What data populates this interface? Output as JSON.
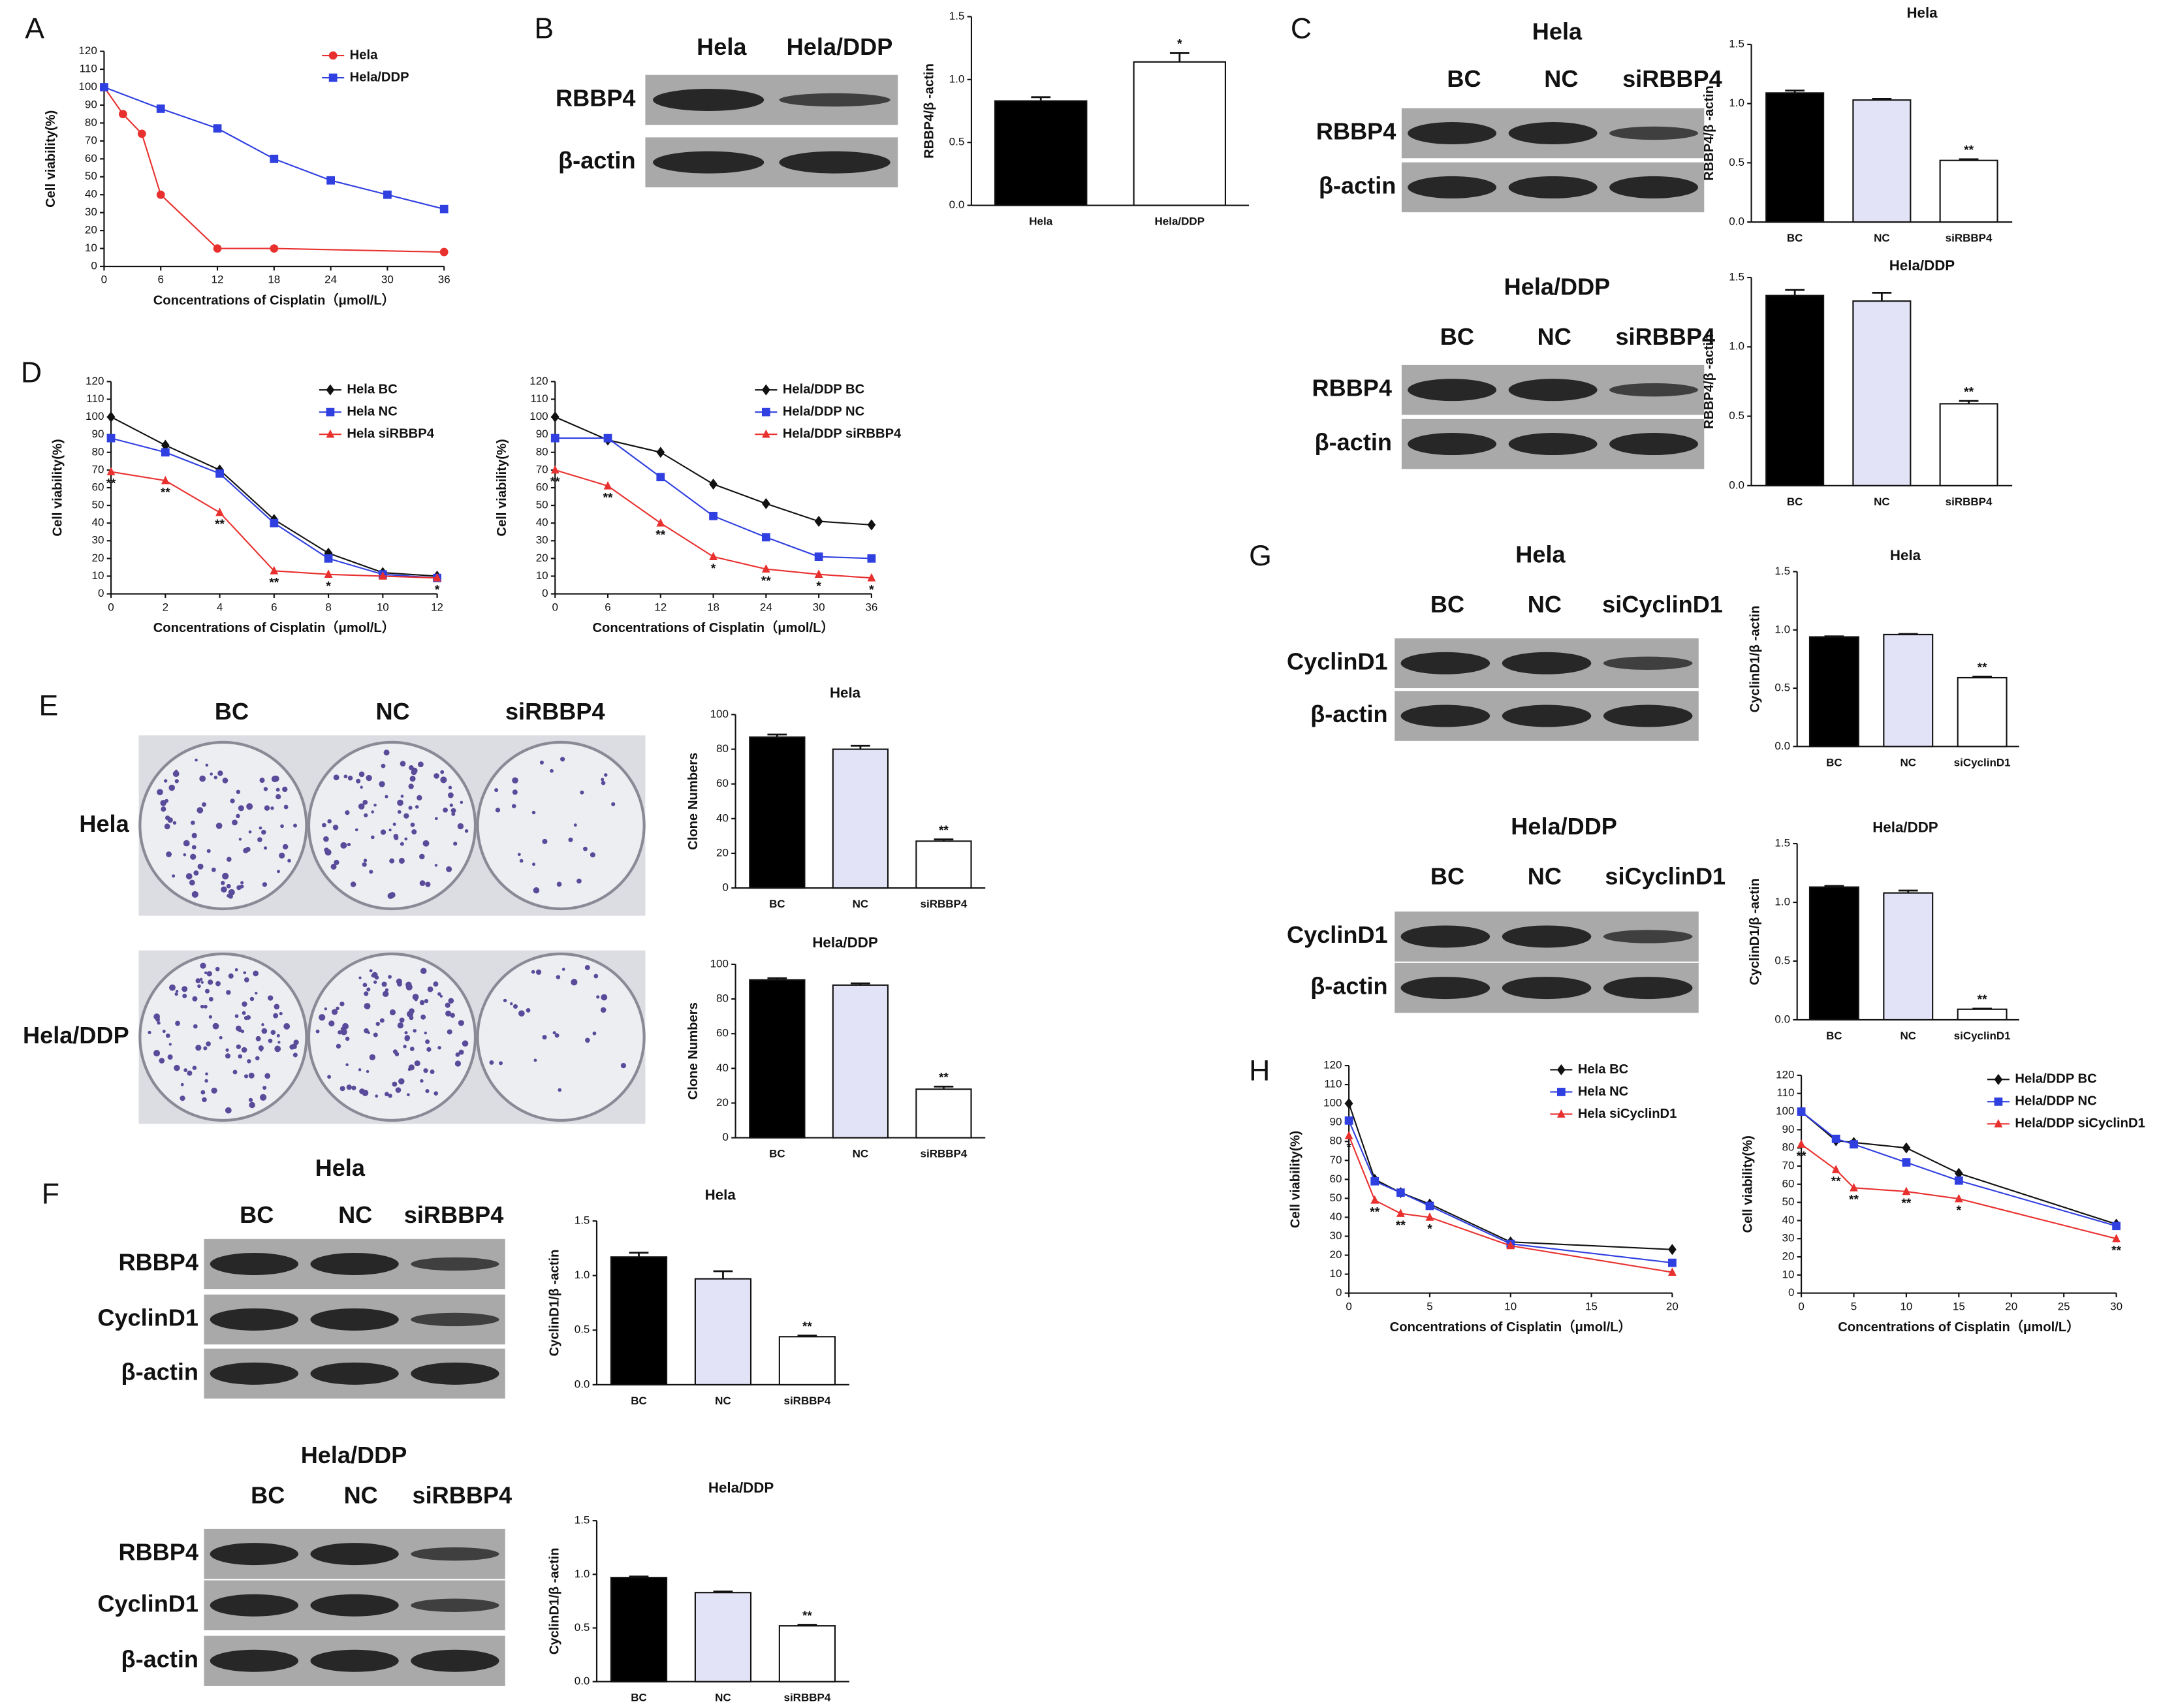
{
  "panels": [
    "A",
    "B",
    "C",
    "D",
    "E",
    "F",
    "G",
    "H"
  ],
  "blots": [
    {
      "lanes": [
        "Hela",
        "Hela/DDP"
      ],
      "rows": [
        "RBBP4",
        "β-actin"
      ]
    },
    {
      "title": "Hela",
      "lanes": [
        "BC",
        "NC",
        "siRBBP4"
      ],
      "rows": [
        "RBBP4",
        "β-actin"
      ]
    },
    {
      "title": "Hela/DDP",
      "lanes": [
        "BC",
        "NC",
        "siRBBP4"
      ],
      "rows": [
        "RBBP4",
        "β-actin"
      ]
    },
    {
      "title": "Hela",
      "lanes": [
        "BC",
        "NC",
        "siRBBP4"
      ],
      "rows": [
        "RBBP4",
        "CyclinD1",
        "β-actin"
      ]
    },
    {
      "title": "Hela/DDP",
      "lanes": [
        "BC",
        "NC",
        "siRBBP4"
      ],
      "rows": [
        "RBBP4",
        "CyclinD1",
        "β-actin"
      ]
    },
    {
      "title": "Hela",
      "lanes": [
        "BC",
        "NC",
        "siCyclinD1"
      ],
      "rows": [
        "CyclinD1",
        "β-actin"
      ]
    },
    {
      "title": "Hela/DDP",
      "lanes": [
        "BC",
        "NC",
        "siCyclinD1"
      ],
      "rows": [
        "CyclinD1",
        "β-actin"
      ]
    }
  ],
  "plates": {
    "lanes": [
      "BC",
      "NC",
      "siRBBP4"
    ],
    "rows": [
      "Hela",
      "Hela/DDP"
    ]
  },
  "chart_data": [
    {
      "type": "line",
      "xlabel": "Concentrations of Cisplatin（μmol/L）",
      "ylabel": "Cell viability(%)",
      "xlim": [
        0,
        36
      ],
      "xticks": [
        0,
        6,
        12,
        18,
        24,
        30,
        36
      ],
      "ylim": [
        0,
        120
      ],
      "yticks": [
        0,
        10,
        20,
        30,
        40,
        50,
        60,
        70,
        80,
        90,
        100,
        110,
        120
      ],
      "series": [
        {
          "name": "Hela",
          "color": "#e8312f",
          "marker": "circle",
          "x": [
            0,
            2,
            4,
            6,
            12,
            18,
            36
          ],
          "values": [
            100,
            85,
            74,
            40,
            10,
            10,
            8
          ]
        },
        {
          "name": "Hela/DDP",
          "color": "#2f3fe0",
          "marker": "square",
          "x": [
            0,
            6,
            12,
            18,
            24,
            30,
            36
          ],
          "values": [
            100,
            88,
            77,
            60,
            48,
            40,
            32
          ]
        }
      ]
    },
    {
      "type": "bar",
      "ylabel": "RBBP4/β -actin",
      "categories": [
        "Hela",
        "Hela/DDP"
      ],
      "values": [
        0.83,
        1.14
      ],
      "errors": [
        0.03,
        0.07
      ],
      "colors": [
        "#000000",
        "#ffffff"
      ],
      "significance": [
        null,
        "*"
      ],
      "ylim": [
        0,
        1.5
      ],
      "yticks": [
        {
          "value": 0,
          "label": "0.0"
        },
        0.5,
        {
          "value": 1,
          "label": "1.0"
        },
        1.5
      ]
    },
    {
      "type": "bar",
      "title": "Hela",
      "ylabel": "RBBP4/β -actin",
      "categories": [
        "BC",
        "NC",
        "siRBBP4"
      ],
      "values": [
        1.09,
        1.03,
        0.52
      ],
      "errors": [
        0.02,
        0.01,
        0.01
      ],
      "colors": [
        "#000000",
        "#e3e3f8",
        "#ffffff"
      ],
      "significance": [
        null,
        null,
        "**"
      ],
      "ylim": [
        0,
        1.5
      ],
      "yticks": [
        {
          "value": 0,
          "label": "0.0"
        },
        0.5,
        {
          "value": 1,
          "label": "1.0"
        },
        1.5
      ]
    },
    {
      "type": "bar",
      "title": "Hela/DDP",
      "ylabel": "RBBP4/β -actin",
      "categories": [
        "BC",
        "NC",
        "siRBBP4"
      ],
      "values": [
        1.37,
        1.33,
        0.59
      ],
      "errors": [
        0.04,
        0.06,
        0.02
      ],
      "colors": [
        "#000000",
        "#e3e3f8",
        "#ffffff"
      ],
      "significance": [
        null,
        null,
        "**"
      ],
      "ylim": [
        0,
        1.5
      ],
      "yticks": [
        {
          "value": 0,
          "label": "0.0"
        },
        0.5,
        {
          "value": 1,
          "label": "1.0"
        },
        1.5
      ]
    },
    {
      "type": "line",
      "xlabel": "Concentrations of Cisplatin（μmol/L）",
      "ylabel": "Cell viability(%)",
      "xlim": [
        0,
        12
      ],
      "xticks": [
        0,
        2,
        4,
        6,
        8,
        10,
        12
      ],
      "ylim": [
        0,
        120
      ],
      "yticks": [
        0,
        10,
        20,
        30,
        40,
        50,
        60,
        70,
        80,
        90,
        100,
        110,
        120
      ],
      "series": [
        {
          "name": "Hela BC",
          "color": "#111111",
          "marker": "diamond",
          "x": [
            0,
            2,
            4,
            6,
            8,
            10,
            12
          ],
          "values": [
            100,
            84,
            70,
            42,
            23,
            12,
            10
          ]
        },
        {
          "name": "Hela NC",
          "color": "#2f3fe0",
          "marker": "square",
          "x": [
            0,
            2,
            4,
            6,
            8,
            10,
            12
          ],
          "values": [
            88,
            80,
            68,
            40,
            20,
            11,
            9
          ]
        },
        {
          "name": "Hela siRBBP4",
          "color": "#e8312f",
          "marker": "triangle",
          "x": [
            0,
            2,
            4,
            6,
            8,
            10,
            12
          ],
          "values": [
            69,
            64,
            46,
            13,
            11,
            10,
            9
          ],
          "point_labels": [
            "**",
            "**",
            "**",
            "**",
            "*",
            null,
            "*"
          ]
        }
      ]
    },
    {
      "type": "line",
      "xlabel": "Concentrations of Cisplatin（μmol/L）",
      "ylabel": "Cell viability(%)",
      "xlim": [
        0,
        36
      ],
      "xticks": [
        0,
        6,
        12,
        18,
        24,
        30,
        36
      ],
      "ylim": [
        0,
        120
      ],
      "yticks": [
        0,
        10,
        20,
        30,
        40,
        50,
        60,
        70,
        80,
        90,
        100,
        110,
        120
      ],
      "series": [
        {
          "name": "Hela/DDP BC",
          "color": "#111111",
          "marker": "diamond",
          "x": [
            0,
            6,
            12,
            18,
            24,
            30,
            36
          ],
          "values": [
            100,
            87,
            80,
            62,
            51,
            41,
            39
          ]
        },
        {
          "name": "Hela/DDP NC",
          "color": "#2f3fe0",
          "marker": "square",
          "x": [
            0,
            6,
            12,
            18,
            24,
            30,
            36
          ],
          "values": [
            88,
            88,
            66,
            44,
            32,
            21,
            20
          ]
        },
        {
          "name": "Hela/DDP siRBBP4",
          "color": "#e8312f",
          "marker": "triangle",
          "x": [
            0,
            6,
            12,
            18,
            24,
            30,
            36
          ],
          "values": [
            70,
            61,
            40,
            21,
            14,
            11,
            9
          ],
          "point_labels": [
            "**",
            "**",
            "**",
            "*",
            "**",
            "*",
            "*"
          ]
        }
      ]
    },
    {
      "type": "bar",
      "title": "Hela",
      "ylabel": "Clone Numbers",
      "categories": [
        "BC",
        "NC",
        "siRBBP4"
      ],
      "values": [
        87,
        80,
        27
      ],
      "errors": [
        1.5,
        2,
        1
      ],
      "colors": [
        "#000000",
        "#e3e3f8",
        "#ffffff"
      ],
      "significance": [
        null,
        null,
        "**"
      ],
      "ylim": [
        0,
        100
      ],
      "yticks": [
        0,
        20,
        40,
        60,
        80,
        100
      ]
    },
    {
      "type": "bar",
      "title": "Hela/DDP",
      "ylabel": "Clone Numbers",
      "categories": [
        "BC",
        "NC",
        "siRBBP4"
      ],
      "values": [
        91,
        88,
        28
      ],
      "errors": [
        1,
        1,
        1.5
      ],
      "colors": [
        "#000000",
        "#e3e3f8",
        "#ffffff"
      ],
      "significance": [
        null,
        null,
        "**"
      ],
      "ylim": [
        0,
        100
      ],
      "yticks": [
        0,
        20,
        40,
        60,
        80,
        100
      ]
    },
    {
      "type": "bar",
      "title": "Hela",
      "ylabel": "CyclinD1/β -actin",
      "categories": [
        "BC",
        "NC",
        "siRBBP4"
      ],
      "values": [
        1.17,
        0.97,
        0.44
      ],
      "errors": [
        0.04,
        0.07,
        0.01
      ],
      "colors": [
        "#000000",
        "#e3e3f8",
        "#ffffff"
      ],
      "significance": [
        null,
        null,
        "**"
      ],
      "ylim": [
        0,
        1.5
      ],
      "yticks": [
        {
          "value": 0,
          "label": "0.0"
        },
        0.5,
        {
          "value": 1,
          "label": "1.0"
        },
        1.5
      ]
    },
    {
      "type": "bar",
      "title": "Hela/DDP",
      "ylabel": "CyclinD1/β -actin",
      "categories": [
        "BC",
        "NC",
        "siRBBP4"
      ],
      "values": [
        0.97,
        0.83,
        0.52
      ],
      "errors": [
        0.01,
        0.01,
        0.01
      ],
      "colors": [
        "#000000",
        "#e3e3f8",
        "#ffffff"
      ],
      "significance": [
        null,
        null,
        "**"
      ],
      "ylim": [
        0,
        1.5
      ],
      "yticks": [
        {
          "value": 0,
          "label": "0.0"
        },
        0.5,
        {
          "value": 1,
          "label": "1.0"
        },
        1.5
      ]
    },
    {
      "type": "bar",
      "title": "Hela",
      "ylabel": "CyclinD1/β -actin",
      "categories": [
        "BC",
        "NC",
        "siCyclinD1"
      ],
      "values": [
        0.94,
        0.96,
        0.59
      ],
      "errors": [
        0.005,
        0.005,
        0.01
      ],
      "colors": [
        "#000000",
        "#e3e3f8",
        "#ffffff"
      ],
      "significance": [
        null,
        null,
        "**"
      ],
      "ylim": [
        0,
        1.5
      ],
      "yticks": [
        {
          "value": 0,
          "label": "0.0"
        },
        0.5,
        {
          "value": 1,
          "label": "1.0"
        },
        1.5
      ]
    },
    {
      "type": "bar",
      "title": "Hela/DDP",
      "ylabel": "CyclinD1/β -actin",
      "categories": [
        "BC",
        "NC",
        "siCyclinD1"
      ],
      "values": [
        1.13,
        1.08,
        0.09
      ],
      "errors": [
        0.01,
        0.02,
        0.005
      ],
      "colors": [
        "#000000",
        "#e3e3f8",
        "#ffffff"
      ],
      "significance": [
        null,
        null,
        "**"
      ],
      "ylim": [
        0,
        1.5
      ],
      "yticks": [
        {
          "value": 0,
          "label": "0.0"
        },
        0.5,
        {
          "value": 1,
          "label": "1.0"
        },
        1.5
      ]
    },
    {
      "type": "line",
      "xlabel": "Concentrations of Cisplatin（μmol/L）",
      "ylabel": "Cell viability(%)",
      "xlim": [
        0,
        20
      ],
      "xticks": [
        0,
        5,
        10,
        15,
        20
      ],
      "ylim": [
        0,
        120
      ],
      "yticks": [
        0,
        10,
        20,
        30,
        40,
        50,
        60,
        70,
        80,
        90,
        100,
        110,
        120
      ],
      "series": [
        {
          "name": "Hela BC",
          "color": "#111111",
          "marker": "diamond",
          "x": [
            0,
            1.6,
            3.2,
            5,
            10,
            20
          ],
          "values": [
            100,
            60,
            53,
            47,
            27,
            23
          ]
        },
        {
          "name": "Hela NC",
          "color": "#2f3fe0",
          "marker": "square",
          "x": [
            0,
            1.6,
            3.2,
            5,
            10,
            20
          ],
          "values": [
            91,
            59,
            53,
            46,
            26,
            16
          ]
        },
        {
          "name": "Hela siCyclinD1",
          "color": "#e8312f",
          "marker": "triangle",
          "x": [
            0,
            1.6,
            3.2,
            5,
            10,
            20
          ],
          "values": [
            83,
            49,
            42,
            40,
            25,
            11
          ],
          "point_labels": [
            "*",
            "**",
            "**",
            "*",
            null,
            null
          ]
        }
      ]
    },
    {
      "type": "line",
      "xlabel": "Concentrations of Cisplatin（μmol/L）",
      "ylabel": "Cell viability(%)",
      "xlim": [
        0,
        30
      ],
      "xticks": [
        0,
        5,
        10,
        15,
        20,
        25,
        30
      ],
      "ylim": [
        0,
        120
      ],
      "yticks": [
        0,
        10,
        20,
        30,
        40,
        50,
        60,
        70,
        80,
        90,
        100,
        110,
        120
      ],
      "series": [
        {
          "name": "Hela/DDP BC",
          "color": "#111111",
          "marker": "diamond",
          "x": [
            0,
            3.3,
            5,
            10,
            15,
            30
          ],
          "values": [
            100,
            84,
            83,
            80,
            66,
            38
          ]
        },
        {
          "name": "Hela/DDP NC",
          "color": "#2f3fe0",
          "marker": "square",
          "x": [
            0,
            3.3,
            5,
            10,
            15,
            30
          ],
          "values": [
            100,
            85,
            82,
            72,
            62,
            37
          ]
        },
        {
          "name": "Hela/DDP siCyclinD1",
          "color": "#e8312f",
          "marker": "triangle",
          "x": [
            0,
            3.3,
            5,
            10,
            15,
            30
          ],
          "values": [
            82,
            68,
            58,
            56,
            52,
            30
          ],
          "point_labels": [
            "**",
            "**",
            "**",
            "**",
            "*",
            "**"
          ]
        }
      ]
    }
  ]
}
